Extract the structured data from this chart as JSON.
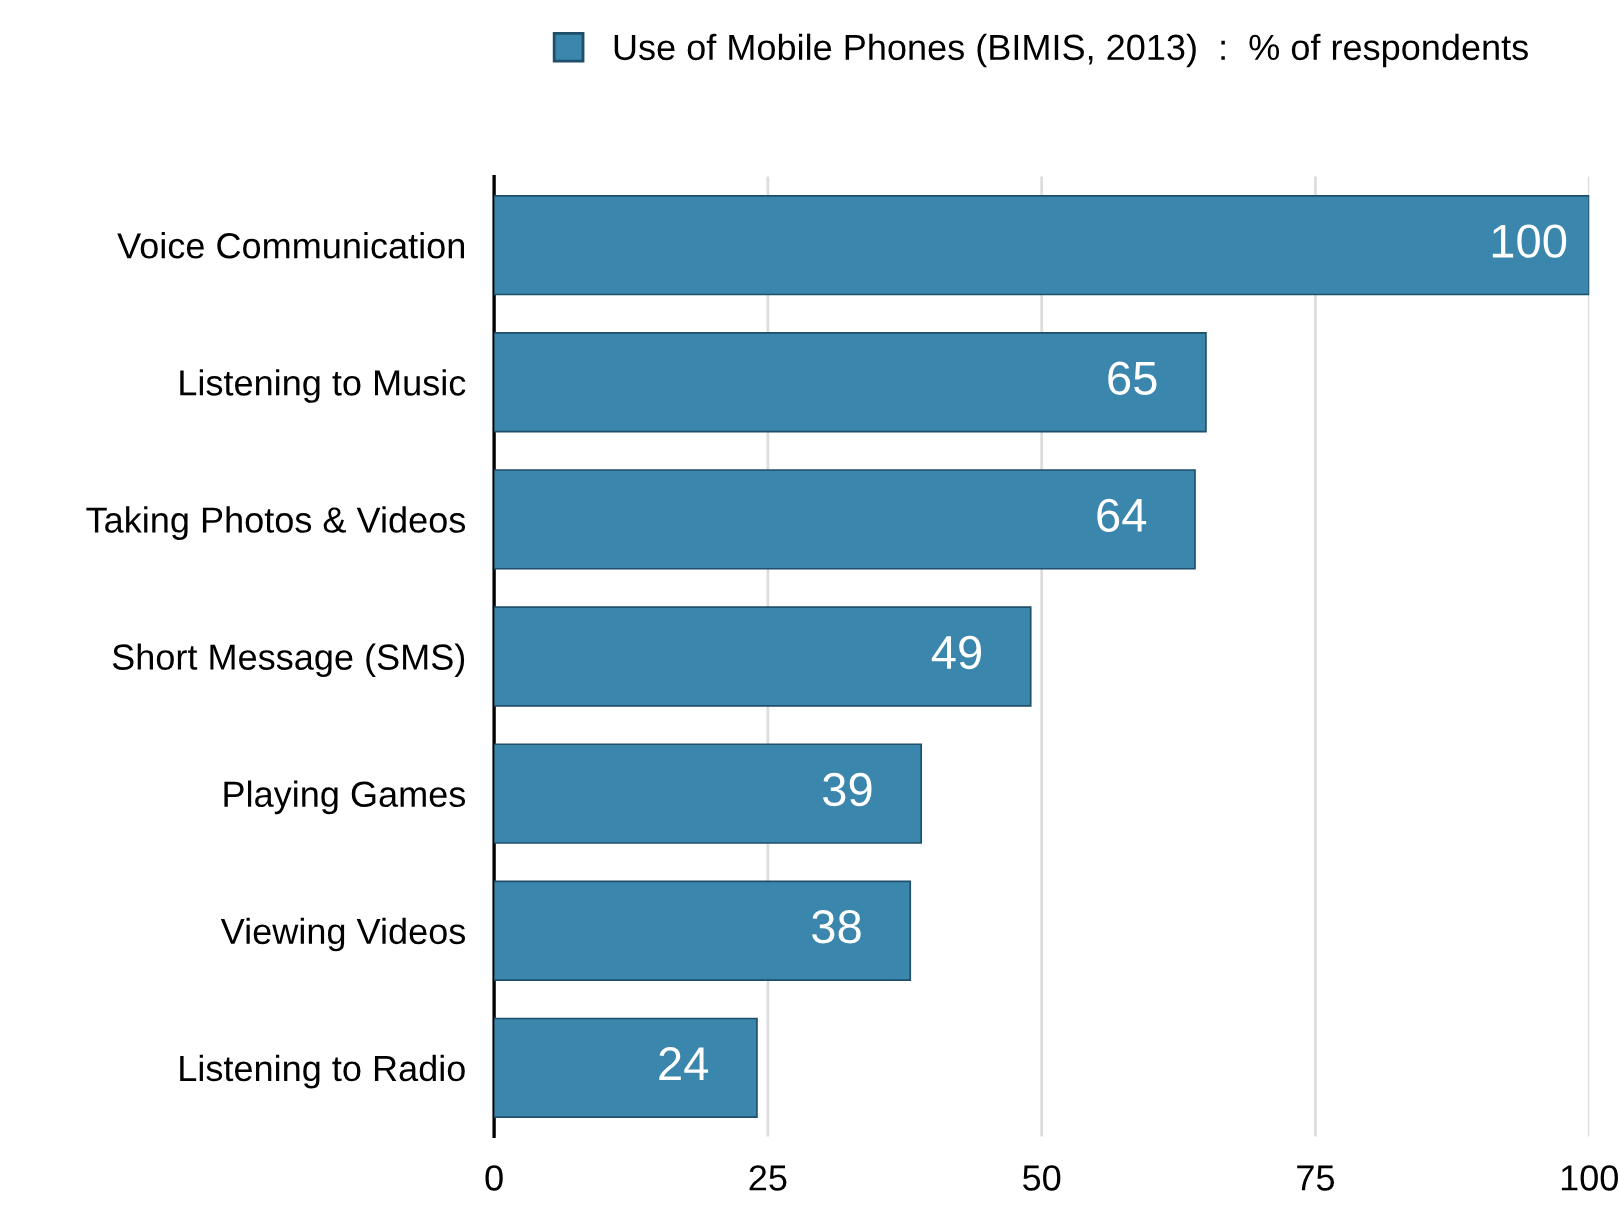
{
  "chart_data": {
    "type": "bar",
    "orientation": "horizontal",
    "categories": [
      "Voice Communication",
      "Listening to Music",
      "Taking Photos & Videos",
      "Short Message (SMS)",
      "Playing Games",
      "Viewing Videos",
      "Listening to Radio"
    ],
    "series": [
      {
        "name": "Use of Mobile Phones (BIMIS, 2013)  :  % of respondents",
        "color": "#3a86ad",
        "values": [
          100,
          65,
          64,
          49,
          39,
          38,
          24
        ]
      }
    ],
    "xlim": [
      0,
      100
    ],
    "xticks": [
      0,
      25,
      50,
      75,
      100
    ],
    "grid": "x",
    "legend": "top",
    "data_labels": true
  }
}
